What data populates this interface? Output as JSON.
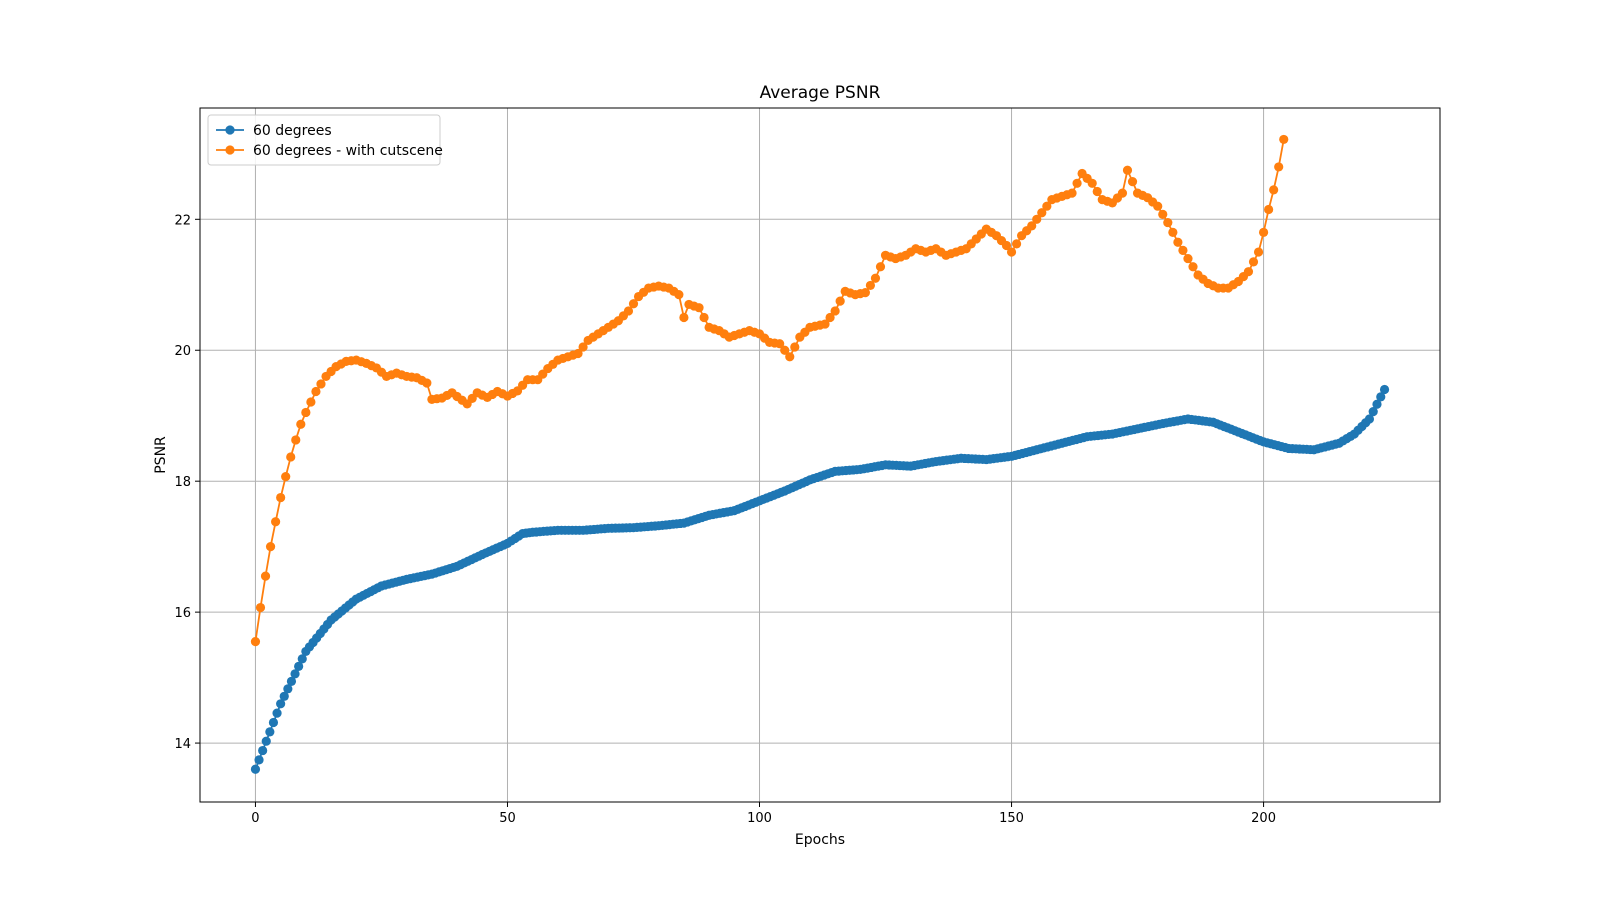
{
  "chart_data": {
    "type": "line",
    "title": "Average PSNR",
    "xlabel": "Epochs",
    "ylabel": "PSNR",
    "xlim": [
      -11,
      235
    ],
    "ylim": [
      13.1,
      23.7
    ],
    "xticks": [
      0,
      50,
      100,
      150,
      200
    ],
    "yticks": [
      14,
      16,
      18,
      20,
      22
    ],
    "grid": true,
    "legend": "upper left",
    "series": [
      {
        "name": "60 degrees",
        "color": "#1f77b4",
        "marker": "circle",
        "points": [
          [
            0,
            13.6
          ],
          [
            5,
            14.6
          ],
          [
            10,
            15.4
          ],
          [
            15,
            15.88
          ],
          [
            20,
            16.2
          ],
          [
            25,
            16.4
          ],
          [
            30,
            16.5
          ],
          [
            35,
            16.58
          ],
          [
            40,
            16.7
          ],
          [
            45,
            16.88
          ],
          [
            50,
            17.05
          ],
          [
            53,
            17.2
          ],
          [
            55,
            17.22
          ],
          [
            60,
            17.25
          ],
          [
            65,
            17.25
          ],
          [
            70,
            17.28
          ],
          [
            75,
            17.29
          ],
          [
            80,
            17.32
          ],
          [
            85,
            17.36
          ],
          [
            90,
            17.48
          ],
          [
            95,
            17.55
          ],
          [
            100,
            17.7
          ],
          [
            105,
            17.85
          ],
          [
            110,
            18.02
          ],
          [
            115,
            18.15
          ],
          [
            120,
            18.18
          ],
          [
            125,
            18.25
          ],
          [
            130,
            18.23
          ],
          [
            135,
            18.3
          ],
          [
            140,
            18.35
          ],
          [
            145,
            18.33
          ],
          [
            150,
            18.38
          ],
          [
            155,
            18.48
          ],
          [
            160,
            18.58
          ],
          [
            165,
            18.68
          ],
          [
            170,
            18.72
          ],
          [
            175,
            18.8
          ],
          [
            180,
            18.88
          ],
          [
            185,
            18.95
          ],
          [
            190,
            18.9
          ],
          [
            195,
            18.75
          ],
          [
            200,
            18.6
          ],
          [
            205,
            18.5
          ],
          [
            210,
            18.48
          ],
          [
            215,
            18.58
          ],
          [
            218,
            18.72
          ],
          [
            221,
            18.95
          ],
          [
            224,
            19.4
          ]
        ]
      },
      {
        "name": "60 degrees - with cutscene",
        "color": "#ff7f0e",
        "marker": "circle",
        "points": [
          [
            0,
            15.55
          ],
          [
            1,
            16.07
          ],
          [
            2,
            16.55
          ],
          [
            3,
            17.0
          ],
          [
            4,
            17.38
          ],
          [
            5,
            17.75
          ],
          [
            6,
            18.07
          ],
          [
            7,
            18.37
          ],
          [
            8,
            18.63
          ],
          [
            9,
            18.87
          ],
          [
            10,
            19.05
          ],
          [
            12,
            19.37
          ],
          [
            14,
            19.6
          ],
          [
            16,
            19.75
          ],
          [
            18,
            19.83
          ],
          [
            20,
            19.85
          ],
          [
            22,
            19.8
          ],
          [
            24,
            19.73
          ],
          [
            26,
            19.6
          ],
          [
            28,
            19.65
          ],
          [
            30,
            19.6
          ],
          [
            32,
            19.58
          ],
          [
            34,
            19.5
          ],
          [
            35,
            19.25
          ],
          [
            37,
            19.27
          ],
          [
            39,
            19.35
          ],
          [
            42,
            19.18
          ],
          [
            44,
            19.35
          ],
          [
            46,
            19.28
          ],
          [
            48,
            19.37
          ],
          [
            50,
            19.3
          ],
          [
            52,
            19.38
          ],
          [
            54,
            19.55
          ],
          [
            56,
            19.55
          ],
          [
            58,
            19.72
          ],
          [
            60,
            19.85
          ],
          [
            62,
            19.9
          ],
          [
            64,
            19.95
          ],
          [
            66,
            20.15
          ],
          [
            68,
            20.25
          ],
          [
            70,
            20.35
          ],
          [
            72,
            20.45
          ],
          [
            74,
            20.6
          ],
          [
            76,
            20.82
          ],
          [
            78,
            20.95
          ],
          [
            80,
            20.98
          ],
          [
            82,
            20.95
          ],
          [
            84,
            20.85
          ],
          [
            85,
            20.5
          ],
          [
            86,
            20.7
          ],
          [
            88,
            20.65
          ],
          [
            90,
            20.35
          ],
          [
            92,
            20.3
          ],
          [
            94,
            20.2
          ],
          [
            96,
            20.25
          ],
          [
            98,
            20.3
          ],
          [
            100,
            20.25
          ],
          [
            102,
            20.12
          ],
          [
            104,
            20.1
          ],
          [
            106,
            19.9
          ],
          [
            108,
            20.2
          ],
          [
            110,
            20.35
          ],
          [
            113,
            20.4
          ],
          [
            115,
            20.6
          ],
          [
            117,
            20.9
          ],
          [
            119,
            20.85
          ],
          [
            121,
            20.88
          ],
          [
            123,
            21.1
          ],
          [
            125,
            21.45
          ],
          [
            127,
            21.4
          ],
          [
            129,
            21.45
          ],
          [
            131,
            21.55
          ],
          [
            133,
            21.5
          ],
          [
            135,
            21.55
          ],
          [
            137,
            21.45
          ],
          [
            139,
            21.5
          ],
          [
            141,
            21.55
          ],
          [
            143,
            21.7
          ],
          [
            145,
            21.85
          ],
          [
            147,
            21.75
          ],
          [
            149,
            21.6
          ],
          [
            150,
            21.5
          ],
          [
            152,
            21.75
          ],
          [
            154,
            21.9
          ],
          [
            156,
            22.1
          ],
          [
            158,
            22.3
          ],
          [
            160,
            22.35
          ],
          [
            162,
            22.4
          ],
          [
            164,
            22.7
          ],
          [
            166,
            22.55
          ],
          [
            168,
            22.3
          ],
          [
            170,
            22.25
          ],
          [
            172,
            22.4
          ],
          [
            173,
            22.75
          ],
          [
            175,
            22.4
          ],
          [
            177,
            22.33
          ],
          [
            179,
            22.2
          ],
          [
            181,
            21.95
          ],
          [
            183,
            21.65
          ],
          [
            185,
            21.4
          ],
          [
            187,
            21.15
          ],
          [
            189,
            21.02
          ],
          [
            191,
            20.95
          ],
          [
            193,
            20.95
          ],
          [
            195,
            21.05
          ],
          [
            197,
            21.2
          ],
          [
            199,
            21.5
          ],
          [
            200,
            21.8
          ],
          [
            201,
            22.15
          ],
          [
            202,
            22.45
          ],
          [
            203,
            22.8
          ],
          [
            204,
            23.22
          ]
        ]
      }
    ]
  }
}
